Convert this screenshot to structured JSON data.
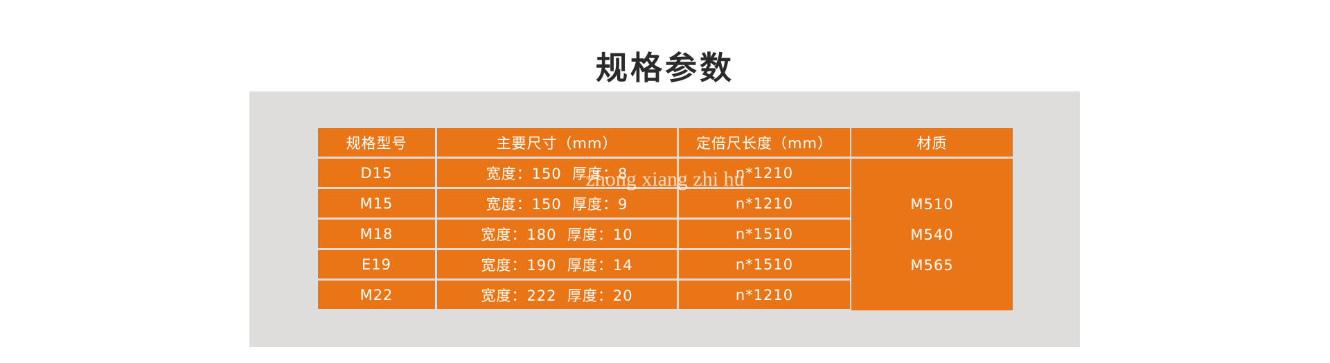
{
  "title": "规格参数",
  "table": {
    "headers": [
      "规格型号",
      "主要尺寸（mm）",
      "定倍尺长度（mm）",
      "材质"
    ],
    "rows": [
      [
        "D15",
        "宽度：150  厚度：8",
        "n*1210"
      ],
      [
        "M15",
        "宽度：150  厚度：9",
        "n*1210"
      ],
      [
        "M18",
        "宽度：180  厚度：10",
        "n*1510"
      ],
      [
        "E19",
        "宽度：190  厚度：14",
        "n*1510"
      ],
      [
        "M22",
        "宽度：222  厚度：20",
        "n*1210"
      ]
    ],
    "materials": [
      "M510",
      "M540",
      "M565"
    ]
  },
  "watermark": "zhong xiang zhi hu",
  "colors": {
    "accent": "#e97516",
    "panel": "#dfdddb"
  }
}
